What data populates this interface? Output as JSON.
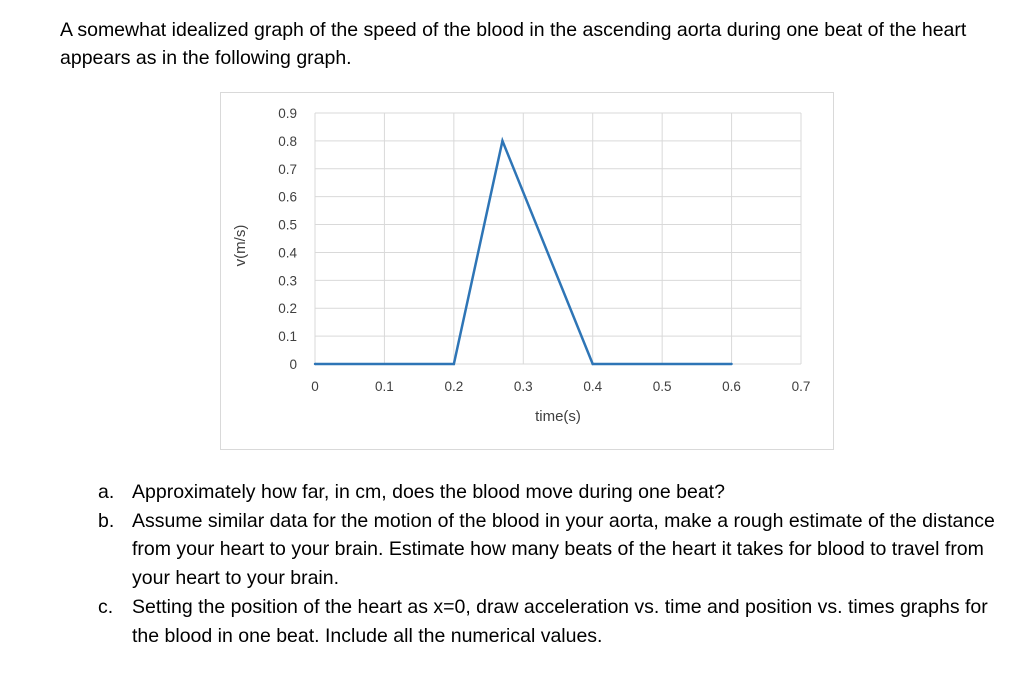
{
  "intro": "A somewhat idealized graph of the speed of the blood in the ascending aorta during one beat of the heart appears as in the following graph.",
  "chart_data": {
    "type": "line",
    "xlabel": "time(s)",
    "ylabel": "v(m/s)",
    "xlim": [
      0,
      0.7
    ],
    "ylim": [
      0,
      0.9
    ],
    "x_ticks": [
      "0",
      "0.1",
      "0.2",
      "0.3",
      "0.4",
      "0.5",
      "0.6",
      "0.7"
    ],
    "y_ticks": [
      "0",
      "0.1",
      "0.2",
      "0.3",
      "0.4",
      "0.5",
      "0.6",
      "0.7",
      "0.8",
      "0.9"
    ],
    "grid": true,
    "legend": "none",
    "series": [
      {
        "x": [
          0,
          0.2,
          0.27,
          0.4,
          0.6
        ],
        "y": [
          0,
          0,
          0.8,
          0,
          0
        ],
        "color": "#2e75b6"
      }
    ],
    "gridline_color": "#d9d9d9"
  },
  "questions": [
    {
      "marker": "a.",
      "text": "Approximately how far, in cm, does the blood move during one beat?"
    },
    {
      "marker": "b.",
      "text": "Assume similar data for the motion of the blood in your aorta, make a rough estimate of the distance from your heart to your brain. Estimate how many beats of the heart it takes for blood to travel from your heart to your brain."
    },
    {
      "marker": "c.",
      "text": "Setting the position of the heart as x=0, draw acceleration vs. time and position vs. times graphs for the blood in one beat. Include all the numerical values."
    }
  ]
}
